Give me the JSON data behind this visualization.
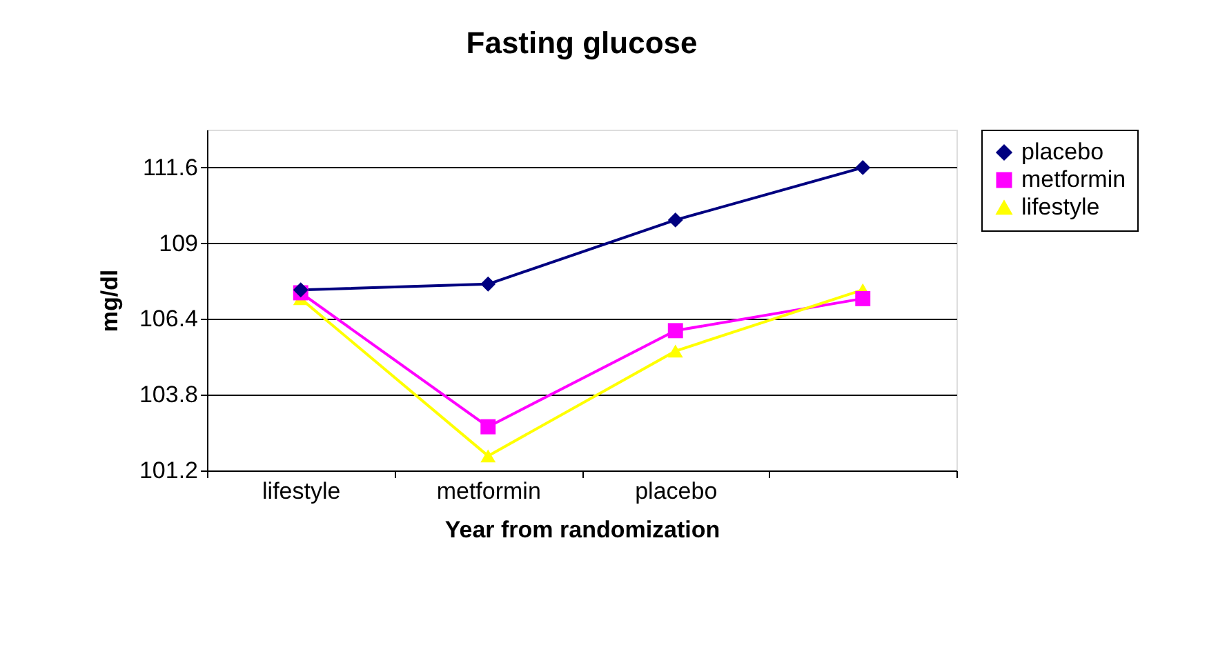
{
  "chart_data": {
    "type": "line",
    "title": "Fasting glucose",
    "xlabel": "Year from randomization",
    "ylabel": "mg/dl",
    "categories": [
      "lifestyle",
      "metformin",
      "placebo",
      null
    ],
    "series": [
      {
        "name": "placebo",
        "color": "#000080",
        "marker": "diamond",
        "values": [
          107.4,
          107.6,
          109.8,
          111.6
        ]
      },
      {
        "name": "metformin",
        "color": "#ff00ff",
        "marker": "square",
        "values": [
          107.3,
          102.7,
          106.0,
          107.1
        ]
      },
      {
        "name": "lifestyle",
        "color": "#ffff00",
        "marker": "triangle",
        "values": [
          107.1,
          101.7,
          105.3,
          107.4
        ]
      }
    ],
    "ylim": [
      101.2,
      112.9
    ],
    "yticks": [
      101.2,
      103.8,
      106.4,
      109,
      111.6
    ],
    "grid": "y",
    "legend": "right"
  }
}
